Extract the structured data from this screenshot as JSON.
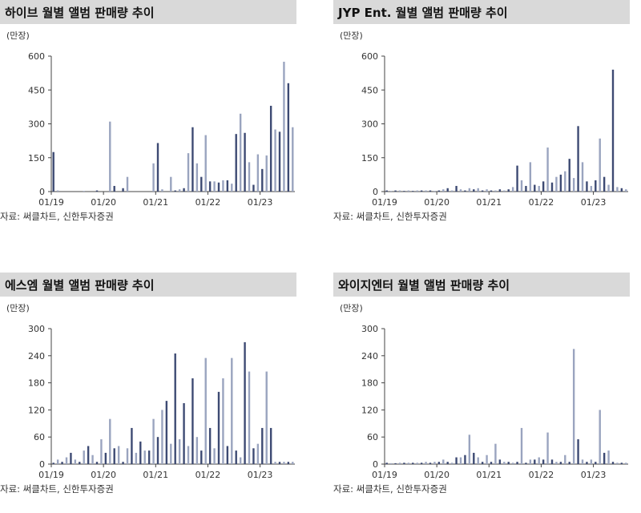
{
  "colors": {
    "dark_bar": "#3d4a73",
    "light_bar": "#9aa4bf",
    "axis": "#444444",
    "title_bg": "#d9d9d9"
  },
  "panels": [
    {
      "title": "하이브 월별 앨범 판매량 추이",
      "unit": "(만장)",
      "source": "자료: 써클차트, 신한투자증권",
      "chart_data": {
        "type": "bar",
        "title": "하이브 월별 앨범 판매량 추이",
        "ylabel": "(만장)",
        "ylim": [
          0,
          600
        ],
        "yticks": [
          0,
          150,
          300,
          450,
          600
        ],
        "xtick_labels": [
          "01/19",
          "01/20",
          "01/21",
          "01/22",
          "01/23"
        ],
        "xtick_index": [
          0,
          12,
          24,
          36,
          48
        ],
        "series": [
          {
            "values": [
              175,
              5,
              0,
              0,
              0,
              0,
              0,
              3,
              0,
              0,
              5,
              0,
              0,
              310,
              25,
              0,
              15,
              65,
              0,
              0,
              0,
              0,
              0,
              125,
              215,
              10,
              0,
              65,
              5,
              10,
              15,
              170,
              285,
              125,
              65,
              250,
              45,
              45,
              40,
              50,
              50,
              35,
              255,
              345,
              260,
              130,
              30,
              165,
              100,
              160,
              380,
              275,
              265,
              575,
              480,
              285
            ]
          }
        ]
      }
    },
    {
      "title": "JYP Ent. 월별 앨범 판매량 추이",
      "unit": "(만장)",
      "source": "자료: 써클차트, 신한투자증권",
      "chart_data": {
        "type": "bar",
        "title": "JYP Ent. 월별 앨범 판매량 추이",
        "ylabel": "(만장)",
        "ylim": [
          0,
          600
        ],
        "yticks": [
          0,
          150,
          300,
          450,
          600
        ],
        "xtick_labels": [
          "01/19",
          "01/20",
          "01/21",
          "01/22",
          "01/23"
        ],
        "xtick_index": [
          0,
          12,
          24,
          36,
          48
        ],
        "series": [
          {
            "values": [
              5,
              3,
              5,
              5,
              3,
              5,
              3,
              5,
              5,
              5,
              5,
              3,
              5,
              10,
              15,
              5,
              25,
              10,
              5,
              15,
              10,
              15,
              5,
              10,
              5,
              5,
              10,
              5,
              10,
              20,
              115,
              50,
              25,
              130,
              30,
              25,
              45,
              195,
              40,
              65,
              75,
              90,
              145,
              60,
              290,
              130,
              45,
              25,
              50,
              235,
              65,
              30,
              540,
              20,
              15,
              10
            ]
          }
        ]
      }
    },
    {
      "title": "에스엠 월별 앨범 판매량 추이",
      "unit": "(만장)",
      "source": "자료: 써클차트, 신한투자증권",
      "chart_data": {
        "type": "bar",
        "title": "에스엠 월별 앨범 판매량 추이",
        "ylabel": "(만장)",
        "ylim": [
          0,
          300
        ],
        "yticks": [
          0,
          60,
          120,
          180,
          240,
          300
        ],
        "xtick_labels": [
          "01/19",
          "01/20",
          "01/21",
          "01/22",
          "01/23"
        ],
        "xtick_index": [
          0,
          12,
          24,
          36,
          48
        ],
        "series": [
          {
            "values": [
              3,
              10,
              5,
              15,
              25,
              10,
              5,
              30,
              40,
              20,
              5,
              55,
              25,
              100,
              35,
              40,
              5,
              35,
              80,
              25,
              50,
              30,
              30,
              100,
              60,
              120,
              140,
              45,
              245,
              55,
              135,
              40,
              190,
              60,
              30,
              235,
              80,
              35,
              160,
              190,
              40,
              235,
              30,
              15,
              270,
              205,
              35,
              45,
              80,
              205,
              80,
              5,
              5,
              5,
              5,
              5
            ]
          }
        ]
      }
    },
    {
      "title": "와이지엔터 월별 앨범 판매량 추이",
      "unit": "(만장)",
      "source": "자료: 써클차트, 신한투자증권",
      "chart_data": {
        "type": "bar",
        "title": "와이지엔터 월별 앨범 판매량 추이",
        "ylabel": "(만장)",
        "ylim": [
          0,
          300
        ],
        "yticks": [
          0,
          60,
          120,
          180,
          240,
          300
        ],
        "xtick_labels": [
          "01/19",
          "01/20",
          "01/21",
          "01/22",
          "01/23"
        ],
        "xtick_index": [
          0,
          12,
          24,
          36,
          48
        ],
        "series": [
          {
            "values": [
              3,
              2,
              2,
              3,
              3,
              3,
              3,
              3,
              3,
              5,
              3,
              5,
              5,
              10,
              5,
              3,
              15,
              15,
              20,
              65,
              25,
              15,
              5,
              20,
              5,
              45,
              10,
              5,
              5,
              3,
              5,
              80,
              3,
              10,
              10,
              15,
              10,
              70,
              10,
              5,
              5,
              20,
              5,
              255,
              55,
              10,
              5,
              10,
              5,
              120,
              25,
              30,
              5,
              3,
              3,
              3
            ]
          }
        ]
      }
    }
  ]
}
